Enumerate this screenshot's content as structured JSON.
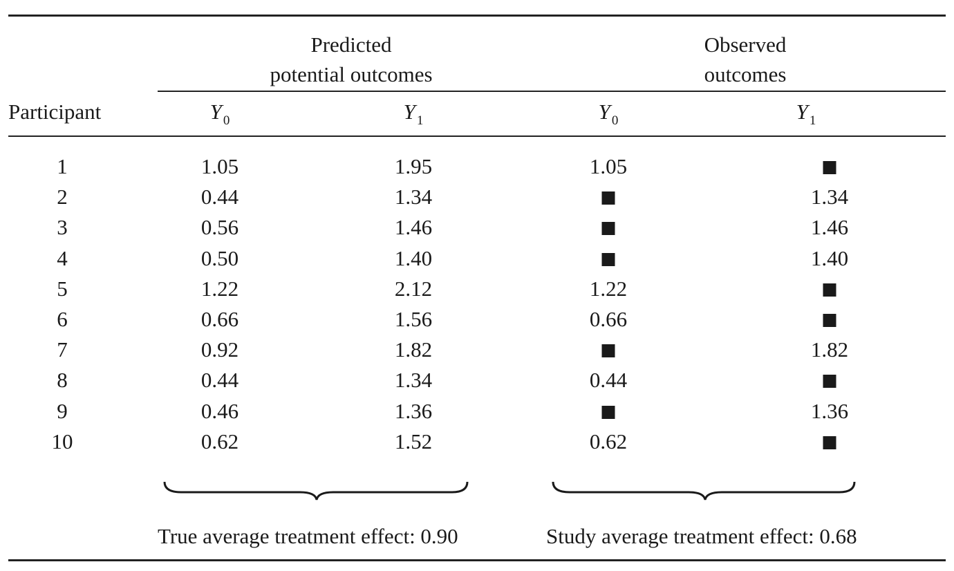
{
  "header": {
    "participant": "Participant",
    "predicted_line1": "Predicted",
    "predicted_line2": "potential outcomes",
    "observed_line1": "Observed",
    "observed_line2": "outcomes",
    "y0_var": "Y",
    "y0_sub": "0",
    "y1_var": "Y",
    "y1_sub": "1"
  },
  "rows": [
    {
      "participant": "1",
      "pred_y0": "1.05",
      "pred_y1": "1.95",
      "obs_y0": "1.05",
      "obs_y1": ""
    },
    {
      "participant": "2",
      "pred_y0": "0.44",
      "pred_y1": "1.34",
      "obs_y0": "",
      "obs_y1": "1.34"
    },
    {
      "participant": "3",
      "pred_y0": "0.56",
      "pred_y1": "1.46",
      "obs_y0": "",
      "obs_y1": "1.46"
    },
    {
      "participant": "4",
      "pred_y0": "0.50",
      "pred_y1": "1.40",
      "obs_y0": "",
      "obs_y1": "1.40"
    },
    {
      "participant": "5",
      "pred_y0": "1.22",
      "pred_y1": "2.12",
      "obs_y0": "1.22",
      "obs_y1": ""
    },
    {
      "participant": "6",
      "pred_y0": "0.66",
      "pred_y1": "1.56",
      "obs_y0": "0.66",
      "obs_y1": ""
    },
    {
      "participant": "7",
      "pred_y0": "0.92",
      "pred_y1": "1.82",
      "obs_y0": "",
      "obs_y1": "1.82"
    },
    {
      "participant": "8",
      "pred_y0": "0.44",
      "pred_y1": "1.34",
      "obs_y0": "0.44",
      "obs_y1": ""
    },
    {
      "participant": "9",
      "pred_y0": "0.46",
      "pred_y1": "1.36",
      "obs_y0": "",
      "obs_y1": "1.36"
    },
    {
      "participant": "10",
      "pred_y0": "0.62",
      "pred_y1": "1.52",
      "obs_y0": "0.62",
      "obs_y1": ""
    }
  ],
  "missing_marker": "filled-square",
  "footer": {
    "true_effect": "True average treatment effect: 0.90",
    "study_effect": "Study average treatment effect: 0.68"
  }
}
